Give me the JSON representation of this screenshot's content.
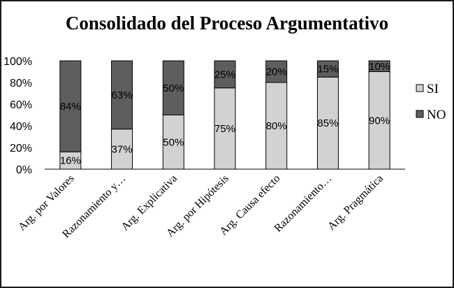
{
  "chart_data": {
    "type": "bar",
    "stacked": true,
    "percent": true,
    "title": "Consolidado  del Proceso Argumentativo",
    "categories": [
      "Arg. por Valores",
      "Razonamiento y…",
      "Arg. Explicativa",
      "Arg. por Hipótesis",
      "Arg. Causa efecto",
      "Razonamiento…",
      "Arg. Pragmática"
    ],
    "series": [
      {
        "name": "SI",
        "values": [
          16,
          37,
          50,
          75,
          80,
          85,
          90
        ],
        "color": "#d2d2d2"
      },
      {
        "name": "NO",
        "values": [
          84,
          63,
          50,
          25,
          20,
          15,
          10
        ],
        "color": "#5e5e5e"
      }
    ],
    "yticks": [
      "0%",
      "20%",
      "40%",
      "60%",
      "80%",
      "100%"
    ],
    "ylim": [
      0,
      100
    ],
    "grid": false,
    "legend_position": "right"
  }
}
